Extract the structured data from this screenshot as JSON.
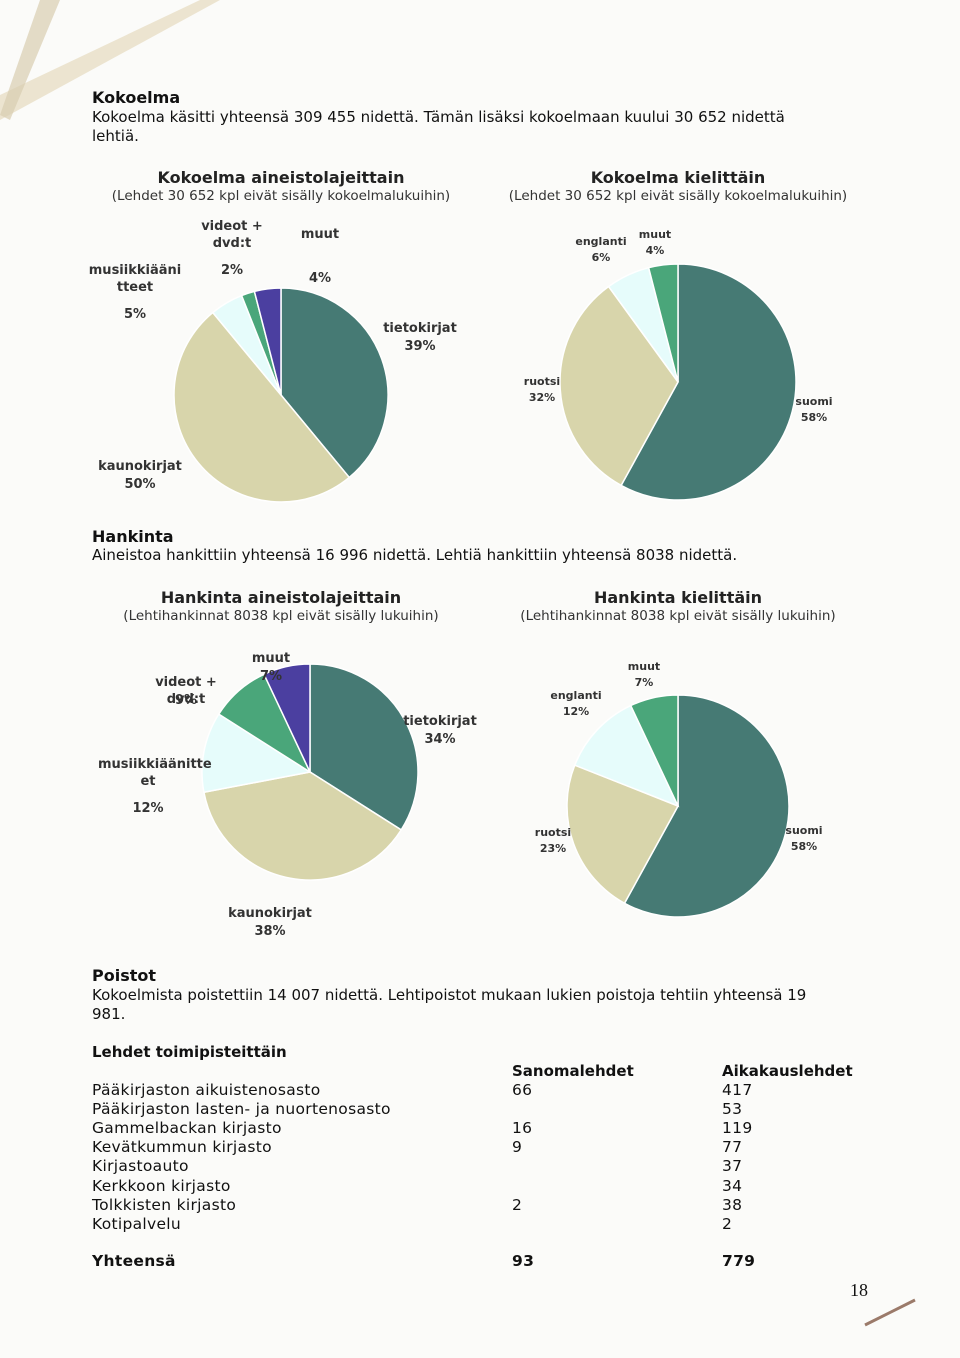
{
  "sections": {
    "kokoelma": {
      "heading": "Kokoelma",
      "text": "Kokoelma käsitti yhteensä 309 455 nidettä. Tämän lisäksi kokoelmaan kuului 30 652 nidettä lehtiä."
    },
    "hankinta": {
      "heading": "Hankinta",
      "text": "Aineistoa hankittiin yhteensä 16 996 nidettä. Lehtiä hankittiin yhteensä 8038 nidettä."
    },
    "poistot": {
      "heading": "Poistot",
      "text": "Kokoelmista poistettiin 14 007 nidettä. Lehtipoistot mukaan lukien poistoja tehtiin yhteensä 19 981."
    }
  },
  "chart_data": [
    {
      "type": "pie",
      "title": "Kokoelma aineistolajeittain",
      "subtitle": "(Lehdet 30 652 kpl eivät sisälly kokoelmalukuihin)",
      "categories": [
        "tietokirjat",
        "kaunokirjat",
        "musiikkiääni tteet",
        "videot + dvd:t",
        "muut"
      ],
      "values": [
        39,
        50,
        5,
        2,
        4
      ],
      "value_labels": [
        "39%",
        "50%",
        "5%",
        "2%",
        "4%"
      ],
      "colors": [
        "#467a74",
        "#d8d5ab",
        "#e6fcfb",
        "#4aa67a",
        "#4b3fa0"
      ]
    },
    {
      "type": "pie",
      "title": "Kokoelma kielittäin",
      "subtitle": "(Lehdet 30 652 kpl eivät sisälly kokoelmalukuihin)",
      "categories": [
        "suomi",
        "ruotsi",
        "englanti",
        "muut"
      ],
      "values": [
        58,
        32,
        6,
        4
      ],
      "value_labels": [
        "58%",
        "32%",
        "6%",
        "4%"
      ],
      "colors": [
        "#467a74",
        "#d8d5ab",
        "#e6fcfb",
        "#4aa67a"
      ]
    },
    {
      "type": "pie",
      "title": "Hankinta aineistolajeittain",
      "subtitle": "(Lehtihankinnat 8038 kpl eivät sisälly lukuihin)",
      "categories": [
        "tietokirjat",
        "kaunokirjat",
        "musiikkiäänitte et",
        "videot + dvd:t",
        "muut"
      ],
      "values": [
        34,
        38,
        12,
        9,
        7
      ],
      "value_labels": [
        "34%",
        "38%",
        "12%",
        "9%",
        "7%"
      ],
      "colors": [
        "#467a74",
        "#d8d5ab",
        "#e6fcfb",
        "#4aa67a",
        "#4b3fa0"
      ]
    },
    {
      "type": "pie",
      "title": "Hankinta kielittäin",
      "subtitle": "(Lehtihankinnat 8038 kpl eivät sisälly lukuihin)",
      "categories": [
        "suomi",
        "ruotsi",
        "englanti",
        "muut"
      ],
      "values": [
        58,
        23,
        12,
        7
      ],
      "value_labels": [
        "58%",
        "23%",
        "12%",
        "7%"
      ],
      "colors": [
        "#467a74",
        "#d8d5ab",
        "#e6fcfb",
        "#4aa67a"
      ]
    }
  ],
  "table": {
    "heading": "Lehdet toimipisteittäin",
    "columns": [
      "Sanomalehdet",
      "Aikakauslehdet"
    ],
    "rows": [
      [
        "Pääkirjaston aikuistenosasto",
        66,
        417
      ],
      [
        "Pääkirjaston lasten- ja nuortenosasto",
        null,
        53
      ],
      [
        "Gammelbackan kirjasto",
        16,
        119
      ],
      [
        "Kevätkummun kirjasto",
        9,
        77
      ],
      [
        "Kirjastoauto",
        null,
        37
      ],
      [
        "Kerkkoon kirjasto",
        null,
        34
      ],
      [
        "Tolkkisten kirjasto",
        2,
        38
      ],
      [
        "Kotipalvelu",
        null,
        2
      ]
    ],
    "total": [
      "Yhteensä",
      93,
      779
    ]
  },
  "page_number": "18"
}
